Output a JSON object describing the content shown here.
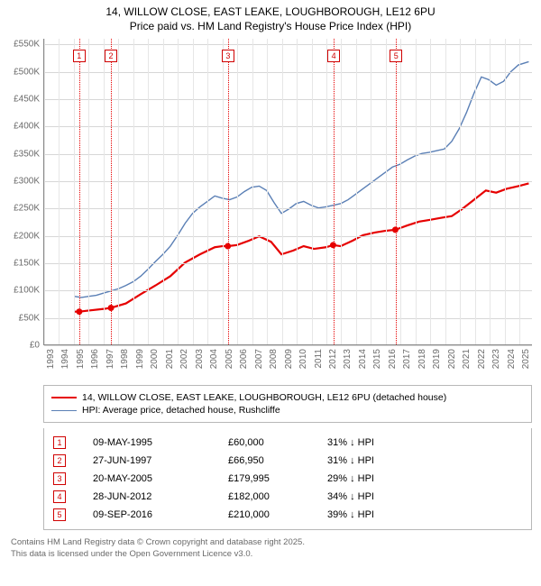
{
  "title": {
    "line1": "14, WILLOW CLOSE, EAST LEAKE, LOUGHBOROUGH, LE12 6PU",
    "line2": "Price paid vs. HM Land Registry's House Price Index (HPI)"
  },
  "chart": {
    "type": "line",
    "background_color": "#ffffff",
    "grid_color_major": "#d7d7d7",
    "grid_color_minor": "#e6e6e6",
    "axis_color": "#888888",
    "tick_label_color": "#6a6a6a",
    "tick_fontsize": 10,
    "x": {
      "min": 1993,
      "max": 2025.9,
      "ticks": [
        1993,
        1994,
        1995,
        1996,
        1997,
        1998,
        1999,
        2000,
        2001,
        2002,
        2003,
        2004,
        2005,
        2006,
        2007,
        2008,
        2009,
        2010,
        2011,
        2012,
        2013,
        2014,
        2015,
        2016,
        2017,
        2018,
        2019,
        2020,
        2021,
        2022,
        2023,
        2024,
        2025
      ]
    },
    "y": {
      "min": 0,
      "max": 560000,
      "ticks": [
        {
          "v": 0,
          "label": "£0"
        },
        {
          "v": 50000,
          "label": "£50K"
        },
        {
          "v": 100000,
          "label": "£100K"
        },
        {
          "v": 150000,
          "label": "£150K"
        },
        {
          "v": 200000,
          "label": "£200K"
        },
        {
          "v": 250000,
          "label": "£250K"
        },
        {
          "v": 300000,
          "label": "£300K"
        },
        {
          "v": 350000,
          "label": "£350K"
        },
        {
          "v": 400000,
          "label": "£400K"
        },
        {
          "v": 450000,
          "label": "£450K"
        },
        {
          "v": 500000,
          "label": "£500K"
        },
        {
          "v": 550000,
          "label": "£550K"
        }
      ]
    },
    "series": [
      {
        "id": "price_paid",
        "label": "14, WILLOW CLOSE, EAST LEAKE, LOUGHBOROUGH, LE12 6PU (detached house)",
        "color": "#e60000",
        "width": 2.2,
        "marker_color": "#e60000",
        "marker_radius": 3.5,
        "data": [
          [
            1995.0,
            60000
          ],
          [
            1995.35,
            60000
          ],
          [
            1996.0,
            62000
          ],
          [
            1997.0,
            65000
          ],
          [
            1997.49,
            66950
          ],
          [
            1998.5,
            75000
          ],
          [
            1999.5,
            92000
          ],
          [
            2000.5,
            108000
          ],
          [
            2001.5,
            125000
          ],
          [
            2002.5,
            150000
          ],
          [
            2003.5,
            165000
          ],
          [
            2004.5,
            178000
          ],
          [
            2005.0,
            180000
          ],
          [
            2005.38,
            179995
          ],
          [
            2006.0,
            182000
          ],
          [
            2006.8,
            190000
          ],
          [
            2007.5,
            198000
          ],
          [
            2008.3,
            188000
          ],
          [
            2009.0,
            165000
          ],
          [
            2009.8,
            172000
          ],
          [
            2010.5,
            180000
          ],
          [
            2011.2,
            175000
          ],
          [
            2012.0,
            178000
          ],
          [
            2012.49,
            182000
          ],
          [
            2013.0,
            180000
          ],
          [
            2013.8,
            190000
          ],
          [
            2014.5,
            200000
          ],
          [
            2015.3,
            205000
          ],
          [
            2016.0,
            208000
          ],
          [
            2016.69,
            210000
          ],
          [
            2017.5,
            218000
          ],
          [
            2018.3,
            225000
          ],
          [
            2019.0,
            228000
          ],
          [
            2019.8,
            232000
          ],
          [
            2020.5,
            235000
          ],
          [
            2021.2,
            248000
          ],
          [
            2022.0,
            265000
          ],
          [
            2022.8,
            282000
          ],
          [
            2023.5,
            278000
          ],
          [
            2024.2,
            285000
          ],
          [
            2025.0,
            290000
          ],
          [
            2025.7,
            295000
          ]
        ],
        "markers_at": [
          [
            1995.35,
            60000
          ],
          [
            1997.49,
            66950
          ],
          [
            2005.38,
            179995
          ],
          [
            2012.49,
            182000
          ],
          [
            2016.69,
            210000
          ]
        ]
      },
      {
        "id": "hpi",
        "label": "HPI: Average price, detached house, Rushcliffe",
        "color": "#5a7fb5",
        "width": 1.4,
        "data": [
          [
            1995.0,
            88000
          ],
          [
            1995.5,
            86000
          ],
          [
            1996.0,
            88000
          ],
          [
            1996.5,
            90000
          ],
          [
            1997.0,
            94000
          ],
          [
            1997.5,
            98000
          ],
          [
            1998.0,
            102000
          ],
          [
            1998.5,
            108000
          ],
          [
            1999.0,
            115000
          ],
          [
            1999.5,
            125000
          ],
          [
            2000.0,
            138000
          ],
          [
            2000.5,
            152000
          ],
          [
            2001.0,
            165000
          ],
          [
            2001.5,
            180000
          ],
          [
            2002.0,
            200000
          ],
          [
            2002.5,
            222000
          ],
          [
            2003.0,
            240000
          ],
          [
            2003.5,
            252000
          ],
          [
            2004.0,
            262000
          ],
          [
            2004.5,
            272000
          ],
          [
            2005.0,
            268000
          ],
          [
            2005.5,
            265000
          ],
          [
            2006.0,
            270000
          ],
          [
            2006.5,
            280000
          ],
          [
            2007.0,
            288000
          ],
          [
            2007.5,
            290000
          ],
          [
            2008.0,
            282000
          ],
          [
            2008.5,
            260000
          ],
          [
            2009.0,
            240000
          ],
          [
            2009.5,
            248000
          ],
          [
            2010.0,
            258000
          ],
          [
            2010.5,
            262000
          ],
          [
            2011.0,
            255000
          ],
          [
            2011.5,
            250000
          ],
          [
            2012.0,
            252000
          ],
          [
            2012.5,
            255000
          ],
          [
            2013.0,
            258000
          ],
          [
            2013.5,
            265000
          ],
          [
            2014.0,
            275000
          ],
          [
            2014.5,
            285000
          ],
          [
            2015.0,
            295000
          ],
          [
            2015.5,
            305000
          ],
          [
            2016.0,
            315000
          ],
          [
            2016.5,
            325000
          ],
          [
            2017.0,
            330000
          ],
          [
            2017.5,
            338000
          ],
          [
            2018.0,
            345000
          ],
          [
            2018.5,
            350000
          ],
          [
            2019.0,
            352000
          ],
          [
            2019.5,
            355000
          ],
          [
            2020.0,
            358000
          ],
          [
            2020.5,
            372000
          ],
          [
            2021.0,
            395000
          ],
          [
            2021.5,
            425000
          ],
          [
            2022.0,
            460000
          ],
          [
            2022.5,
            490000
          ],
          [
            2023.0,
            485000
          ],
          [
            2023.5,
            475000
          ],
          [
            2024.0,
            482000
          ],
          [
            2024.5,
            500000
          ],
          [
            2025.0,
            512000
          ],
          [
            2025.7,
            518000
          ]
        ]
      }
    ],
    "events": [
      {
        "n": "1",
        "year": 1995.35,
        "date": "09-MAY-1995",
        "price": "£60,000",
        "delta": "31% ↓ HPI"
      },
      {
        "n": "2",
        "year": 1997.49,
        "date": "27-JUN-1997",
        "price": "£66,950",
        "delta": "31% ↓ HPI"
      },
      {
        "n": "3",
        "year": 2005.38,
        "date": "20-MAY-2005",
        "price": "£179,995",
        "delta": "29% ↓ HPI"
      },
      {
        "n": "4",
        "year": 2012.49,
        "date": "28-JUN-2012",
        "price": "£182,000",
        "delta": "34% ↓ HPI"
      },
      {
        "n": "5",
        "year": 2016.69,
        "date": "09-SEP-2016",
        "price": "£210,000",
        "delta": "39% ↓ HPI"
      }
    ],
    "event_line_color": "#e60000",
    "flag_border_color": "#d00000"
  },
  "legend_box_border": "#b8b8b8",
  "footer": {
    "line1": "Contains HM Land Registry data © Crown copyright and database right 2025.",
    "line2": "This data is licensed under the Open Government Licence v3.0."
  }
}
